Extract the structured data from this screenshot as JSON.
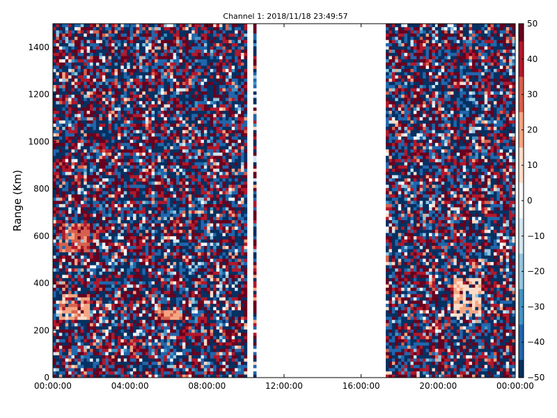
{
  "chart_data": {
    "type": "heatmap",
    "title": "Channel 1: 2018/11/18 23:49:57",
    "xlabel": "",
    "ylabel": "Range (Km)",
    "xlim": [
      "00:00:00",
      "24:00:00"
    ],
    "ylim": [
      0,
      1500
    ],
    "x_ticks": [
      "00:00:00",
      "04:00:00",
      "08:00:00",
      "12:00:00",
      "16:00:00",
      "20:00:00",
      "00:00:00"
    ],
    "y_ticks": [
      "0",
      "200",
      "400",
      "600",
      "800",
      "1000",
      "1200",
      "1400"
    ],
    "colorbar": {
      "range": [
        -50,
        50
      ],
      "ticks": [
        "50",
        "40",
        "30",
        "20",
        "10",
        "0",
        "−10",
        "−20",
        "−30",
        "−40",
        "−50"
      ],
      "colormap": "RdBu_r",
      "colors": [
        "#053061",
        "#2166ac",
        "#4393c3",
        "#92c5de",
        "#d1e5f0",
        "#f7f7f7",
        "#fddbc7",
        "#f4a582",
        "#d6604d",
        "#b2182b",
        "#67001f"
      ]
    },
    "grid": false,
    "data_gaps_hours": [
      [
        10.05,
        10.35
      ],
      [
        10.6,
        17.25
      ],
      [
        17.55,
        17.62
      ]
    ],
    "features": [
      {
        "center_hour": 1.1,
        "range_km": [
          250,
          360
        ],
        "value": 20
      },
      {
        "center_hour": 1.1,
        "range_km": [
          530,
          650
        ],
        "value": 30
      },
      {
        "center_hour": 21.5,
        "range_km": [
          260,
          420
        ],
        "value": 15
      },
      {
        "center_hour": 6.0,
        "range_km": [
          240,
          290
        ],
        "value": 25
      }
    ]
  }
}
